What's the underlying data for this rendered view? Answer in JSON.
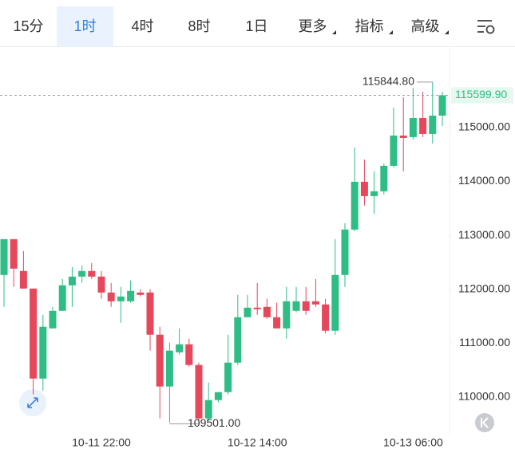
{
  "toolbar": {
    "tabs": [
      "15分",
      "1时",
      "4时",
      "8时",
      "1日",
      "更多",
      "指标",
      "高级"
    ],
    "active": 1
  },
  "chart_data": {
    "type": "candlestick",
    "categories": [
      null,
      null,
      null,
      null,
      null,
      null,
      null,
      null,
      null,
      null,
      "10-11 22:00",
      null,
      null,
      null,
      null,
      null,
      null,
      null,
      null,
      null,
      null,
      null,
      null,
      null,
      null,
      null,
      "10-12 14:00",
      null,
      null,
      null,
      null,
      null,
      null,
      null,
      null,
      null,
      null,
      null,
      null,
      null,
      null,
      null,
      "10-13 06:00",
      null,
      null,
      null
    ],
    "open": [
      112264,
      112929,
      112338,
      112012,
      110341,
      111273,
      111598,
      112072,
      112234,
      112338,
      112234,
      111938,
      111776,
      111776,
      111938,
      111938,
      111155,
      110194,
      110829,
      110977,
      110593,
      109601,
      109942,
      110090,
      110637,
      111480,
      111657,
      111672,
      111480,
      111273,
      111598,
      111776,
      111776,
      111717,
      111229,
      112264,
      113107,
      113994,
      113728,
      113817,
      114290,
      114852,
      114823,
      115177,
      114882,
      115222
    ],
    "high": [
      112929,
      112929,
      112708,
      112012,
      111524,
      111672,
      112190,
      112412,
      112441,
      112486,
      112338,
      112116,
      112042,
      112160,
      112000,
      111998,
      111303,
      111007,
      111273,
      111081,
      110637,
      110267,
      110090,
      111155,
      111894,
      111894,
      112116,
      111820,
      111746,
      112042,
      112042,
      112042,
      112190,
      111820,
      112929,
      113225,
      114630,
      114408,
      114187,
      114334,
      115370,
      115562,
      115740,
      115666,
      115844.8,
      115666
    ],
    "low": [
      111672,
      112042,
      112012,
      110045,
      110119,
      111273,
      111598,
      111672,
      112116,
      112190,
      111820,
      111672,
      111376,
      111746,
      111864,
      110859,
      109601,
      109527,
      110785,
      110563,
      109501,
      109557,
      109897,
      110045,
      110593,
      111480,
      111524,
      111450,
      111273,
      111081,
      111569,
      111524,
      111672,
      111184,
      111155,
      112042,
      113077,
      113551,
      113403,
      113758,
      114260,
      114187,
      114778,
      114823,
      114704,
      115030
    ],
    "close": [
      112929,
      112382,
      112012,
      110341,
      111303,
      111598,
      112072,
      112234,
      112338,
      112234,
      111938,
      111776,
      111864,
      111968,
      111894,
      111155,
      110194,
      110859,
      110977,
      110593,
      109601,
      109942,
      110090,
      110637,
      111480,
      111657,
      111628,
      111480,
      111273,
      111776,
      111776,
      111598,
      111717,
      111229,
      112264,
      113107,
      113994,
      113728,
      113817,
      114290,
      114852,
      114808,
      115177,
      114882,
      115222,
      115599.9
    ],
    "up_color": "#2ebd85",
    "down_color": "#e5475b",
    "ylim": [
      109300,
      116480
    ],
    "yticks": [
      {
        "value": 110000,
        "label": "110000.00"
      },
      {
        "value": 111000,
        "label": "111000.00"
      },
      {
        "value": 112000,
        "label": "112000.00"
      },
      {
        "value": 113000,
        "label": "113000.00"
      },
      {
        "value": 114000,
        "label": "114000.00"
      },
      {
        "value": 115000,
        "label": "115000.00"
      }
    ],
    "last_price": {
      "value": 115599.9,
      "label": "115599.90"
    },
    "max_annotation": {
      "value": 115844.8,
      "label": "115844.80"
    },
    "min_annotation": {
      "value": 109501,
      "label": "109501.00"
    }
  }
}
